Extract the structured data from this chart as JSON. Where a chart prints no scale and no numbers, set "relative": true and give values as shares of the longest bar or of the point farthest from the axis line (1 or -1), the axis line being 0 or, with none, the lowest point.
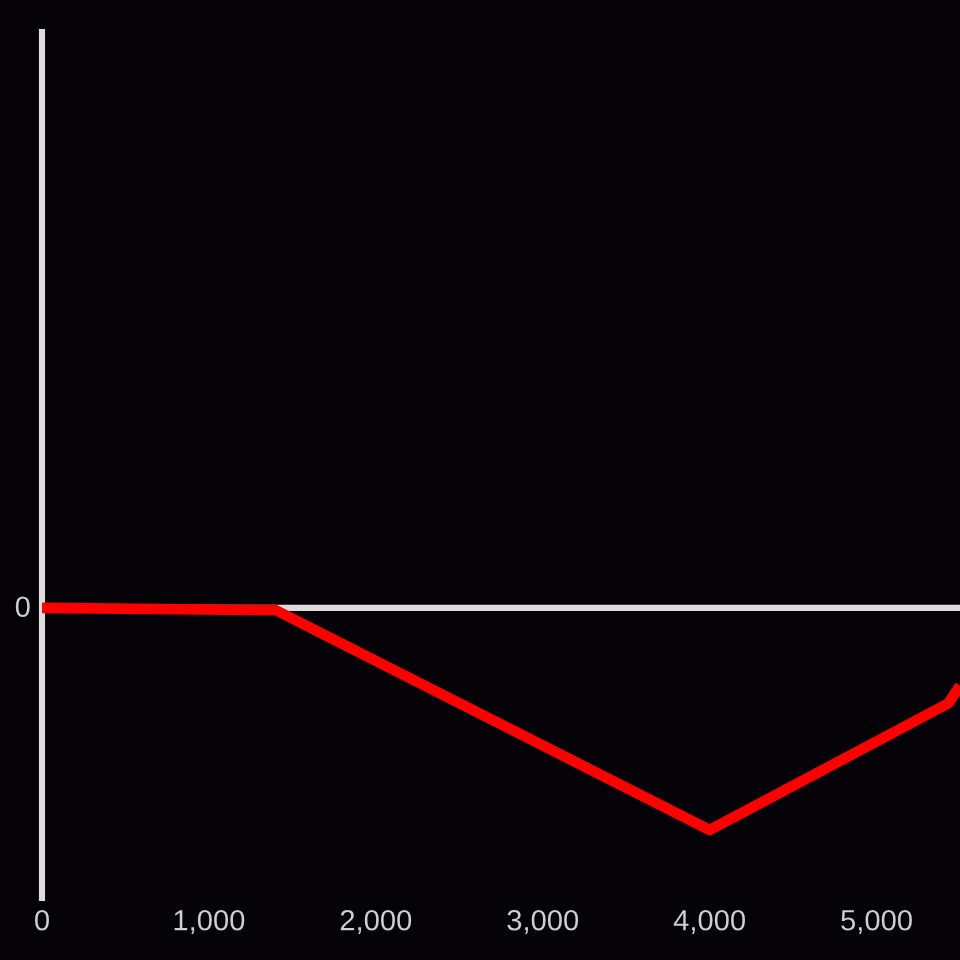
{
  "chart_data": {
    "type": "line",
    "relative": true,
    "x": [
      0,
      1400,
      4000,
      5430,
      5500
    ],
    "series": [
      {
        "color": "#ff0000",
        "values": [
          0,
          -0.01,
          -1,
          -0.43,
          -0.35
        ]
      }
    ],
    "xlim": [
      0,
      5500
    ],
    "xticks": [
      0,
      {
        "value": 1000,
        "label": "1,000"
      },
      {
        "value": 2000,
        "label": "2,000"
      },
      {
        "value": 3000,
        "label": "3,000"
      },
      {
        "value": 4000,
        "label": "4,000"
      },
      {
        "value": 5000,
        "label": "5,000"
      }
    ],
    "annotations": [
      "0"
    ],
    "line_style": "solid"
  }
}
